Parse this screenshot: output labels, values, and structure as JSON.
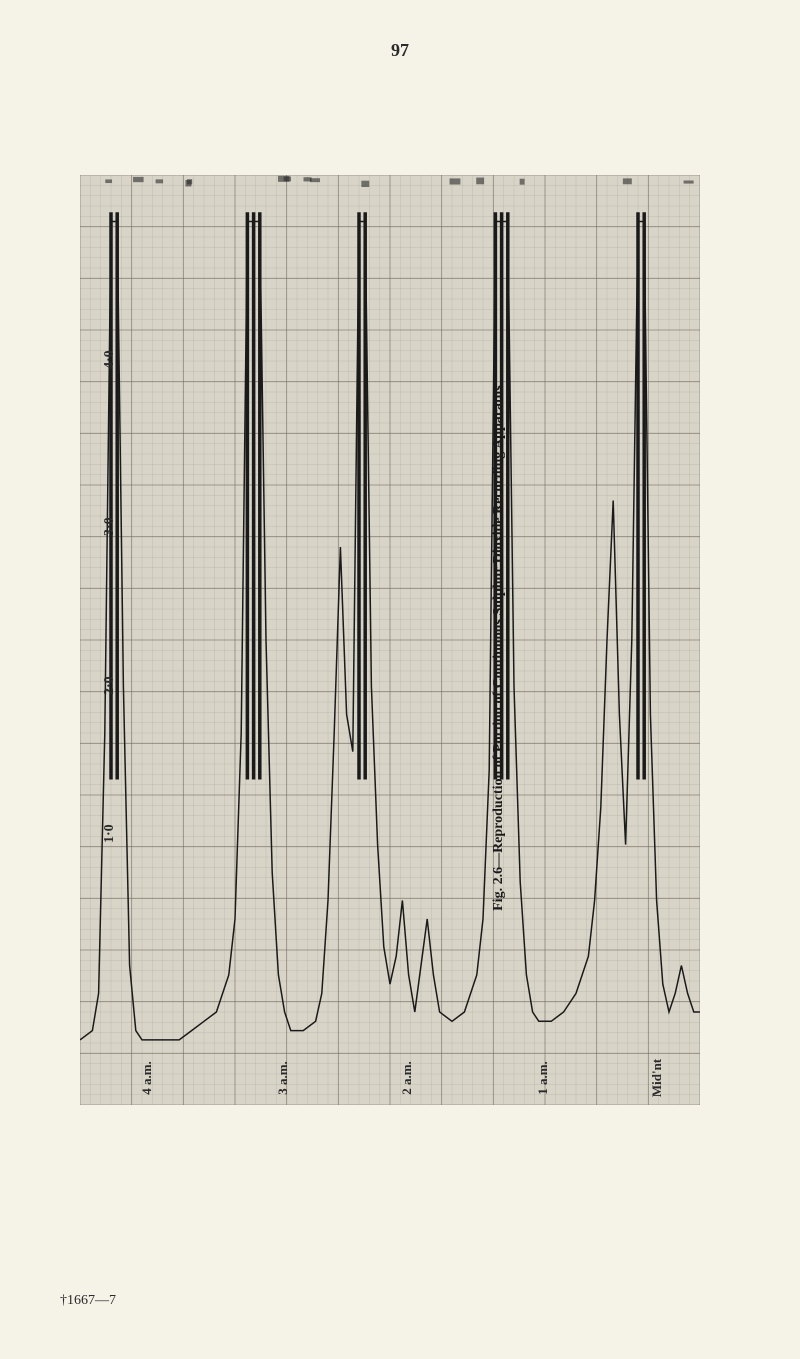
{
  "page_number": "97",
  "caption": "Fig. 2.6—Reproduction of Portion of Continuous Sulphur Dioxide Recording Apparatus",
  "footer_id": "†1667—7",
  "chart": {
    "type": "line",
    "description": "strip-chart recorder trace",
    "background_color": "#d8d4c8",
    "grid_color": "#6b6558",
    "line_color": "#1a1a1a",
    "line_width": 1.5,
    "y_axis": {
      "labels": [
        "1·0",
        "2·0",
        "3·0",
        "4·0"
      ],
      "positions_pct": [
        71,
        55,
        38,
        20
      ]
    },
    "x_axis": {
      "labels": [
        "4 a.m.",
        "3 a.m.",
        "2 a.m.",
        "1 a.m.",
        "Mid'nt"
      ],
      "positions_pct": [
        8,
        30,
        50,
        72,
        90
      ]
    },
    "grid": {
      "h_lines": 90,
      "v_lines": 60,
      "major_h_every": 5,
      "major_v_every": 5
    },
    "trace": [
      [
        0,
        93
      ],
      [
        2,
        92
      ],
      [
        3,
        88
      ],
      [
        4,
        60
      ],
      [
        5,
        5
      ],
      [
        6,
        5
      ],
      [
        7,
        55
      ],
      [
        8,
        85
      ],
      [
        9,
        92
      ],
      [
        10,
        93
      ],
      [
        12,
        93
      ],
      [
        14,
        93
      ],
      [
        16,
        93
      ],
      [
        18,
        92
      ],
      [
        20,
        91
      ],
      [
        22,
        90
      ],
      [
        24,
        86
      ],
      [
        25,
        80
      ],
      [
        26,
        60
      ],
      [
        27,
        5
      ],
      [
        28,
        5
      ],
      [
        29,
        5
      ],
      [
        30,
        50
      ],
      [
        31,
        75
      ],
      [
        32,
        86
      ],
      [
        33,
        90
      ],
      [
        34,
        92
      ],
      [
        36,
        92
      ],
      [
        38,
        91
      ],
      [
        39,
        88
      ],
      [
        40,
        78
      ],
      [
        41,
        60
      ],
      [
        42,
        40
      ],
      [
        43,
        58
      ],
      [
        44,
        62
      ],
      [
        45,
        5
      ],
      [
        46,
        5
      ],
      [
        47,
        55
      ],
      [
        48,
        72
      ],
      [
        49,
        83
      ],
      [
        50,
        87
      ],
      [
        51,
        84
      ],
      [
        52,
        78
      ],
      [
        53,
        86
      ],
      [
        54,
        90
      ],
      [
        55,
        85
      ],
      [
        56,
        80
      ],
      [
        57,
        86
      ],
      [
        58,
        90
      ],
      [
        60,
        91
      ],
      [
        62,
        90
      ],
      [
        64,
        86
      ],
      [
        65,
        80
      ],
      [
        66,
        64
      ],
      [
        67,
        5
      ],
      [
        68,
        5
      ],
      [
        69,
        5
      ],
      [
        70,
        55
      ],
      [
        71,
        76
      ],
      [
        72,
        86
      ],
      [
        73,
        90
      ],
      [
        74,
        91
      ],
      [
        76,
        91
      ],
      [
        78,
        90
      ],
      [
        80,
        88
      ],
      [
        82,
        84
      ],
      [
        83,
        78
      ],
      [
        84,
        68
      ],
      [
        85,
        50
      ],
      [
        86,
        35
      ],
      [
        87,
        58
      ],
      [
        88,
        72
      ],
      [
        89,
        50
      ],
      [
        90,
        5
      ],
      [
        91,
        5
      ],
      [
        92,
        58
      ],
      [
        93,
        78
      ],
      [
        94,
        87
      ],
      [
        95,
        90
      ],
      [
        96,
        88
      ],
      [
        97,
        85
      ],
      [
        98,
        88
      ],
      [
        99,
        90
      ],
      [
        100,
        90
      ]
    ]
  }
}
